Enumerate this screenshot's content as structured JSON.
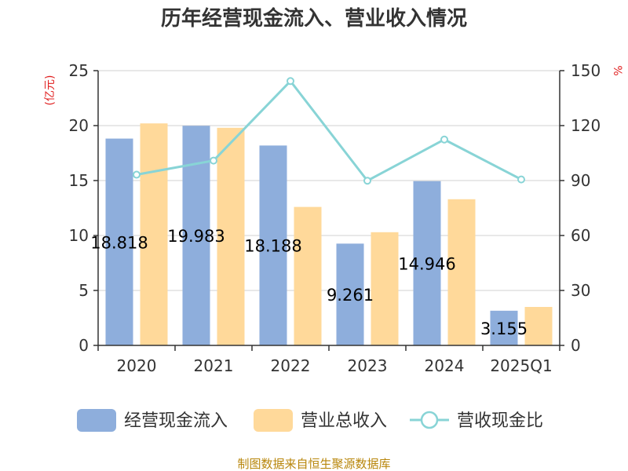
{
  "chart_data": {
    "type": "bar",
    "title": "历年经营现金流入、营业收入情况",
    "categories": [
      "2020",
      "2021",
      "2022",
      "2023",
      "2024",
      "2025Q1"
    ],
    "y_left": {
      "unit": "(亿元)",
      "ylim": [
        0,
        25
      ],
      "ticks": [
        "0",
        "5",
        "10",
        "15",
        "20",
        "25"
      ]
    },
    "y_right": {
      "unit": "%",
      "ylim": [
        0,
        150
      ],
      "ticks": [
        "0",
        "30",
        "60",
        "90",
        "120",
        "150"
      ]
    },
    "series": [
      {
        "name": "经营现金流入",
        "type": "bar",
        "axis": "left",
        "color": "#8eaedc",
        "values": [
          18.818,
          19.983,
          18.188,
          9.261,
          14.946,
          3.155
        ],
        "labels": [
          "18.818",
          "19.983",
          "18.188",
          "9.261",
          "14.946",
          "3.155"
        ]
      },
      {
        "name": "营业总收入",
        "type": "bar",
        "axis": "left",
        "color": "#ffd99a",
        "values": [
          20.2,
          19.8,
          12.6,
          10.3,
          13.3,
          3.5
        ]
      },
      {
        "name": "营收现金比",
        "type": "line",
        "axis": "right",
        "color": "#88d4d6",
        "values": [
          93.2,
          100.9,
          144.3,
          89.9,
          112.4,
          90.6
        ]
      }
    ],
    "legend_position": "bottom",
    "grid": true
  },
  "footer": "制图数据来自恒生聚源数据库"
}
